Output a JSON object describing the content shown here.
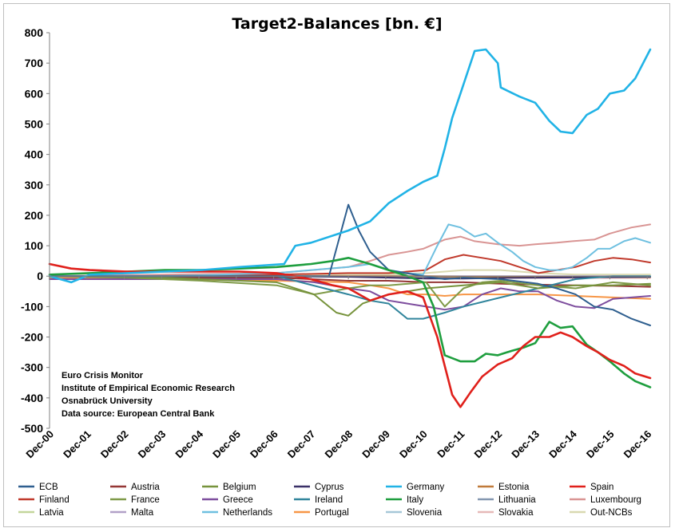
{
  "chart_data": {
    "type": "line",
    "title": "Target2-Balances [bn. €]",
    "xlabel": "",
    "ylabel": "",
    "ylim": [
      -500,
      800
    ],
    "yticks": [
      800,
      700,
      600,
      500,
      400,
      300,
      200,
      100,
      0,
      -100,
      -200,
      -300,
      -400,
      -500
    ],
    "ytick_labels": [
      "800",
      "700",
      "600",
      "500",
      "400",
      "300",
      "200",
      "100",
      "0",
      "-100",
      "-200",
      "-300",
      "-400",
      "-500"
    ],
    "xlim": [
      2000.92,
      2017.0
    ],
    "xticks": [
      2000.92,
      2001.92,
      2002.92,
      2003.92,
      2004.92,
      2005.92,
      2006.92,
      2007.92,
      2008.92,
      2009.92,
      2010.92,
      2011.92,
      2012.92,
      2013.92,
      2014.92,
      2015.92,
      2016.92
    ],
    "xtick_labels": [
      "Dec-00",
      "Dec-01",
      "Dec-02",
      "Dec-03",
      "Dec-04",
      "Dec-05",
      "Dec-06",
      "Dec-07",
      "Dec-08",
      "Dec-09",
      "Dec-10",
      "Dec-11",
      "Dec-12",
      "Dec-13",
      "Dec-14",
      "Dec-15",
      "Dec-16"
    ],
    "grid": false,
    "legend_position": "bottom",
    "annotations": [
      "Euro Crisis Monitor",
      "Institute of Empirical Economic Research",
      "Osnabrück University",
      "Data source: European Central Bank"
    ],
    "series": [
      {
        "name": "ECB",
        "color": "#2f5f8f",
        "x": [
          2000.92,
          2004,
          2007,
          2007.9,
          2008.4,
          2008.92,
          2009.2,
          2009.5,
          2010,
          2010.92,
          2011.5,
          2012,
          2013,
          2014,
          2014.5,
          2015,
          2015.5,
          2016,
          2016.5,
          2017
        ],
        "y": [
          0,
          0,
          0,
          0,
          0,
          235,
          150,
          80,
          20,
          0,
          -10,
          -5,
          -10,
          -25,
          -40,
          -60,
          -100,
          -110,
          -140,
          -162
        ]
      },
      {
        "name": "Austria",
        "color": "#953735",
        "x": [
          2000.92,
          2004,
          2007,
          2008.92,
          2010,
          2011,
          2012,
          2013,
          2014,
          2015,
          2016,
          2017
        ],
        "y": [
          0,
          -5,
          -5,
          -15,
          -15,
          -20,
          -20,
          -25,
          -28,
          -30,
          -32,
          -35
        ]
      },
      {
        "name": "Belgium",
        "color": "#77933c",
        "x": [
          2000.92,
          2004,
          2007,
          2008,
          2008.6,
          2008.92,
          2009.3,
          2010,
          2011,
          2012,
          2013,
          2014,
          2015,
          2016,
          2017
        ],
        "y": [
          0,
          -5,
          -20,
          -60,
          -120,
          -130,
          -90,
          -60,
          -40,
          -30,
          -20,
          -40,
          -30,
          -30,
          -25
        ]
      },
      {
        "name": "Cyprus",
        "color": "#3a3168",
        "x": [
          2000.92,
          2007,
          2008.92,
          2010,
          2011,
          2012,
          2013,
          2014,
          2015,
          2016,
          2017
        ],
        "y": [
          0,
          0,
          -2,
          -5,
          -8,
          -8,
          -6,
          -5,
          -4,
          -3,
          -2
        ]
      },
      {
        "name": "Germany",
        "color": "#21b3e6",
        "x": [
          2000.92,
          2001.5,
          2002,
          2003,
          2004,
          2005,
          2006,
          2007.2,
          2007.5,
          2007.92,
          2008.92,
          2009.5,
          2010,
          2010.5,
          2010.92,
          2011.3,
          2011.5,
          2011.7,
          2011.92,
          2012.3,
          2012.6,
          2012.92,
          2013,
          2013.5,
          2013.92,
          2014.3,
          2014.6,
          2014.92,
          2015.3,
          2015.6,
          2015.92,
          2016.3,
          2016.6,
          2017
        ],
        "y": [
          0,
          -20,
          5,
          10,
          15,
          20,
          30,
          40,
          100,
          110,
          150,
          180,
          240,
          280,
          310,
          330,
          420,
          520,
          600,
          740,
          745,
          700,
          620,
          590,
          570,
          510,
          475,
          470,
          530,
          550,
          600,
          610,
          650,
          745
        ]
      },
      {
        "name": "Estonia",
        "color": "#c07a3a",
        "x": [
          2000.92,
          2011,
          2012,
          2013,
          2014,
          2015,
          2016,
          2017
        ],
        "y": [
          0,
          0,
          -2,
          -2,
          -3,
          -3,
          -3,
          -3
        ]
      },
      {
        "name": "Spain",
        "color": "#e0201b",
        "x": [
          2000.92,
          2001.5,
          2002,
          2003,
          2004,
          2005,
          2006,
          2007,
          2007.92,
          2008.5,
          2008.92,
          2009.5,
          2010,
          2010.5,
          2010.92,
          2011.3,
          2011.7,
          2011.92,
          2012.2,
          2012.5,
          2012.92,
          2013.3,
          2013.6,
          2013.92,
          2014.3,
          2014.6,
          2014.92,
          2015.3,
          2015.6,
          2015.92,
          2016.3,
          2016.6,
          2017
        ],
        "y": [
          40,
          25,
          20,
          15,
          15,
          15,
          15,
          10,
          -10,
          -30,
          -40,
          -80,
          -60,
          -50,
          -70,
          -200,
          -390,
          -430,
          -380,
          -330,
          -290,
          -270,
          -230,
          -200,
          -200,
          -185,
          -200,
          -230,
          -250,
          -275,
          -295,
          -320,
          -335
        ]
      },
      {
        "name": "Finland",
        "color": "#c0392b",
        "x": [
          2000.92,
          2004,
          2007,
          2008.92,
          2010,
          2011,
          2011.5,
          2012,
          2012.5,
          2013,
          2013.5,
          2014,
          2014.5,
          2015,
          2015.5,
          2016,
          2016.5,
          2017
        ],
        "y": [
          0,
          0,
          5,
          10,
          10,
          20,
          55,
          70,
          60,
          50,
          30,
          10,
          20,
          30,
          50,
          60,
          55,
          45
        ]
      },
      {
        "name": "France",
        "color": "#7f9a48",
        "x": [
          2000.92,
          2003,
          2005,
          2007,
          2008,
          2008.92,
          2009.5,
          2010,
          2011,
          2011.5,
          2012,
          2012.5,
          2013,
          2014,
          2015,
          2016,
          2017
        ],
        "y": [
          0,
          -5,
          -15,
          -30,
          -60,
          -40,
          -30,
          -30,
          -20,
          -100,
          -40,
          -20,
          -15,
          -30,
          -40,
          -20,
          -30
        ]
      },
      {
        "name": "Greece",
        "color": "#7e4e9e",
        "x": [
          2000.92,
          2004,
          2007,
          2008,
          2008.92,
          2009.5,
          2010,
          2010.5,
          2011,
          2011.5,
          2012,
          2012.5,
          2013,
          2013.5,
          2014,
          2014.5,
          2015,
          2015.5,
          2016,
          2017
        ],
        "y": [
          -10,
          -10,
          -10,
          -20,
          -40,
          -50,
          -80,
          -90,
          -100,
          -110,
          -100,
          -60,
          -40,
          -50,
          -50,
          -80,
          -100,
          -105,
          -75,
          -65
        ]
      },
      {
        "name": "Ireland",
        "color": "#31859c",
        "x": [
          2000.92,
          2004,
          2007,
          2008.92,
          2009.5,
          2010,
          2010.5,
          2010.92,
          2011.5,
          2012,
          2013,
          2014,
          2015,
          2016,
          2017
        ],
        "y": [
          0,
          0,
          0,
          -60,
          -80,
          -90,
          -140,
          -140,
          -120,
          -100,
          -70,
          -40,
          -10,
          0,
          0
        ]
      },
      {
        "name": "Italy",
        "color": "#1e9e3e",
        "x": [
          2000.92,
          2002,
          2003,
          2004,
          2005,
          2006,
          2007,
          2007.92,
          2008.5,
          2008.92,
          2009.5,
          2010,
          2010.5,
          2010.92,
          2011.2,
          2011.5,
          2011.92,
          2012.3,
          2012.6,
          2012.92,
          2013.3,
          2013.6,
          2013.92,
          2014.3,
          2014.6,
          2014.92,
          2015.3,
          2015.6,
          2015.92,
          2016.3,
          2016.6,
          2017
        ],
        "y": [
          5,
          10,
          15,
          20,
          20,
          25,
          30,
          40,
          50,
          60,
          40,
          20,
          0,
          -20,
          -100,
          -260,
          -280,
          -280,
          -255,
          -260,
          -245,
          -235,
          -220,
          -150,
          -170,
          -165,
          -225,
          -250,
          -280,
          -320,
          -345,
          -365
        ]
      },
      {
        "name": "Lithuania",
        "color": "#8497b0",
        "x": [
          2000.92,
          2011,
          2012,
          2013,
          2014,
          2015,
          2016,
          2017
        ],
        "y": [
          0,
          -2,
          -3,
          -3,
          -3,
          -3,
          -3,
          -3
        ]
      },
      {
        "name": "Luxembourg",
        "color": "#d99594",
        "x": [
          2000.92,
          2004,
          2007,
          2008.92,
          2009.5,
          2010,
          2010.5,
          2010.92,
          2011.5,
          2011.92,
          2012.3,
          2012.6,
          2012.92,
          2013.5,
          2013.92,
          2014.5,
          2014.92,
          2015.5,
          2015.92,
          2016.5,
          2017
        ],
        "y": [
          0,
          5,
          10,
          30,
          50,
          70,
          80,
          90,
          120,
          130,
          115,
          110,
          105,
          100,
          105,
          110,
          115,
          120,
          140,
          160,
          170
        ]
      },
      {
        "name": "Latvia",
        "color": "#c3d69b",
        "x": [
          2000.92,
          2011,
          2012,
          2013,
          2014,
          2015,
          2016,
          2017
        ],
        "y": [
          0,
          -2,
          -2,
          -2,
          -2,
          -2,
          -2,
          -2
        ]
      },
      {
        "name": "Malta",
        "color": "#b1a0c7",
        "x": [
          2000.92,
          2011,
          2012,
          2013,
          2014,
          2015,
          2016,
          2017
        ],
        "y": [
          0,
          0,
          0,
          0,
          0,
          0,
          0,
          0
        ]
      },
      {
        "name": "Netherlands",
        "color": "#6fc0e0",
        "x": [
          2000.92,
          2004,
          2007,
          2007.92,
          2008.92,
          2009.5,
          2010,
          2010.5,
          2010.92,
          2011.3,
          2011.6,
          2011.92,
          2012.3,
          2012.6,
          2012.92,
          2013.3,
          2013.6,
          2013.92,
          2014.3,
          2014.6,
          2014.92,
          2015.3,
          2015.6,
          2015.92,
          2016.3,
          2016.6,
          2017
        ],
        "y": [
          0,
          0,
          10,
          20,
          30,
          40,
          20,
          10,
          5,
          100,
          170,
          160,
          130,
          140,
          110,
          80,
          50,
          30,
          20,
          20,
          30,
          60,
          90,
          90,
          115,
          125,
          110
        ]
      },
      {
        "name": "Portugal",
        "color": "#f79646",
        "x": [
          2000.92,
          2004,
          2007,
          2008.92,
          2009.5,
          2010,
          2010.5,
          2011,
          2011.5,
          2012,
          2012.5,
          2013,
          2014,
          2015,
          2016,
          2017
        ],
        "y": [
          -5,
          -10,
          -15,
          -20,
          -30,
          -40,
          -60,
          -60,
          -65,
          -60,
          -60,
          -60,
          -60,
          -65,
          -70,
          -75
        ]
      },
      {
        "name": "Slovenia",
        "color": "#a6c7d8",
        "x": [
          2000.92,
          2011,
          2012,
          2013,
          2014,
          2015,
          2016,
          2017
        ],
        "y": [
          0,
          -2,
          -3,
          -3,
          -3,
          -3,
          -3,
          -3
        ]
      },
      {
        "name": "Slovakia",
        "color": "#e6b9b8",
        "x": [
          2000.92,
          2011,
          2012,
          2013,
          2014,
          2015,
          2016,
          2017
        ],
        "y": [
          0,
          -3,
          -5,
          -5,
          -6,
          -6,
          -6,
          -6
        ]
      },
      {
        "name": "Out-NCBs",
        "color": "#d9d9b0",
        "x": [
          2000.92,
          2007,
          2008.92,
          2010,
          2011,
          2012,
          2013,
          2014,
          2015,
          2016,
          2017
        ],
        "y": [
          0,
          0,
          5,
          5,
          10,
          20,
          20,
          10,
          5,
          5,
          5
        ]
      }
    ]
  }
}
